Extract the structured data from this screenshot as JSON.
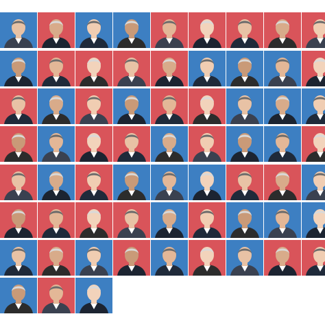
{
  "grid": {
    "columns": 9,
    "rows": 9,
    "party_colors": {
      "blue": "#3d7fc2",
      "red": "#d9545a"
    },
    "cells": [
      [
        "blue",
        "red",
        "blue",
        "blue",
        "red",
        "red",
        "red",
        "red",
        "red"
      ],
      [
        "blue",
        "red",
        "red",
        "red",
        "red",
        "blue",
        "blue",
        "blue",
        "red"
      ],
      [
        "red",
        "blue",
        "red",
        "blue",
        "red",
        "red",
        "blue",
        "blue",
        "blue"
      ],
      [
        "red",
        "blue",
        "red",
        "red",
        "blue",
        "red",
        "blue",
        "blue",
        "red"
      ],
      [
        "red",
        "blue",
        "red",
        "blue",
        "blue",
        "blue",
        "red",
        "red",
        "blue"
      ],
      [
        "red",
        "red",
        "red",
        "red",
        "blue",
        "red",
        "blue",
        "blue",
        "blue"
      ],
      [
        "blue",
        "red",
        "blue",
        "red",
        "blue",
        "red",
        "blue",
        "red",
        "red"
      ],
      [
        "blue",
        "red",
        "blue"
      ]
    ]
  },
  "icon_name": "portrait-icon"
}
